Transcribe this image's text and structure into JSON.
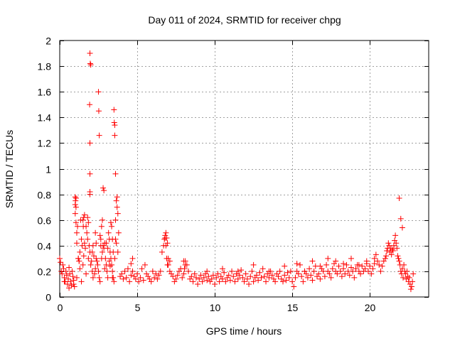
{
  "chart_data": {
    "type": "scatter",
    "title": "Day 011 of 2024, SRMTID for receiver chpg",
    "xlabel": "GPS time / hours",
    "ylabel": "SRMTID / TECUs",
    "xlim": [
      0,
      23.8
    ],
    "ylim": [
      0,
      2
    ],
    "xticks": [
      0,
      5,
      10,
      15,
      20
    ],
    "xtick_labels": [
      "0",
      "5",
      "10",
      "15",
      "20"
    ],
    "yticks": [
      0,
      0.2,
      0.4,
      0.6,
      0.8,
      1,
      1.2,
      1.4,
      1.6,
      1.8,
      2
    ],
    "ytick_labels": [
      "0",
      "0.2",
      "0.4",
      "0.6",
      "0.8",
      "1",
      "1.2",
      "1.4",
      "1.6",
      "1.8",
      "2"
    ],
    "grid": true,
    "marker": "+",
    "color": "#ff0000",
    "series": [
      {
        "name": "SRMTID",
        "x": [
          0.0,
          0.05,
          0.1,
          0.15,
          0.2,
          0.25,
          0.3,
          0.35,
          0.4,
          0.45,
          0.5,
          0.55,
          0.6,
          0.65,
          0.7,
          0.75,
          0.8,
          0.85,
          0.9,
          0.95,
          1.0,
          1.0,
          1.05,
          1.05,
          1.1,
          1.1,
          1.15,
          1.2,
          1.25,
          1.3,
          1.35,
          1.4,
          1.45,
          1.5,
          1.55,
          1.6,
          1.65,
          1.7,
          1.75,
          1.8,
          1.85,
          1.9,
          1.95,
          2.0,
          2.05,
          2.1,
          2.15,
          2.2,
          2.25,
          2.3,
          2.35,
          2.4,
          2.45,
          2.5,
          2.55,
          2.6,
          2.65,
          2.7,
          2.75,
          2.8,
          2.85,
          2.9,
          2.95,
          3.0,
          3.05,
          3.1,
          3.15,
          3.2,
          3.25,
          3.3,
          3.35,
          3.4,
          3.45,
          3.5,
          3.55,
          3.6,
          3.65,
          3.7,
          3.75,
          3.8,
          1.95,
          1.97,
          2.0,
          1.93,
          1.95,
          1.95,
          1.95,
          1.95,
          2.5,
          2.52,
          2.55,
          3.5,
          3.52,
          3.55,
          3.55,
          3.6,
          3.7,
          2.8,
          2.85,
          1.5,
          1.52,
          1.55,
          1.6,
          1.0,
          1.02,
          1.05,
          2.1,
          2.15,
          3.3,
          3.35,
          3.4,
          3.0,
          3.1,
          2.7,
          2.75,
          3.6,
          3.65,
          1.2,
          1.25,
          1.3,
          3.9,
          4.0,
          4.1,
          4.2,
          4.3,
          4.4,
          4.5,
          4.6,
          4.7,
          4.8,
          4.9,
          5.0,
          5.1,
          5.2,
          5.3,
          5.4,
          5.5,
          5.6,
          5.7,
          5.8,
          5.9,
          6.0,
          6.1,
          6.2,
          6.3,
          6.4,
          6.5,
          6.6,
          6.7,
          6.75,
          6.8,
          6.85,
          6.9,
          6.95,
          7.0,
          7.1,
          7.2,
          7.3,
          7.4,
          7.5,
          7.6,
          7.7,
          7.8,
          7.9,
          8.0,
          8.1,
          8.2,
          8.3,
          8.4,
          8.5,
          8.6,
          8.7,
          8.8,
          8.9,
          9.0,
          9.1,
          9.2,
          9.3,
          9.4,
          9.5,
          9.6,
          9.7,
          9.8,
          9.9,
          10.0,
          10.1,
          10.2,
          10.3,
          10.4,
          10.5,
          10.6,
          10.7,
          10.8,
          10.9,
          11.0,
          11.1,
          11.2,
          11.3,
          11.4,
          11.5,
          11.6,
          11.7,
          11.8,
          11.9,
          12.0,
          12.1,
          12.2,
          12.3,
          12.4,
          12.5,
          12.6,
          12.7,
          12.8,
          12.9,
          13.0,
          13.1,
          13.2,
          13.3,
          13.4,
          13.5,
          13.6,
          13.7,
          13.8,
          13.9,
          14.0,
          14.1,
          14.2,
          14.3,
          14.4,
          14.5,
          14.6,
          14.7,
          14.8,
          14.9,
          15.0,
          15.1,
          15.2,
          15.3,
          15.4,
          15.5,
          15.6,
          15.7,
          15.8,
          15.9,
          16.0,
          16.1,
          16.2,
          16.3,
          16.4,
          16.5,
          16.6,
          16.7,
          16.8,
          16.9,
          17.0,
          17.1,
          17.2,
          17.3,
          17.4,
          17.5,
          17.6,
          17.7,
          17.8,
          17.9,
          18.0,
          18.1,
          18.2,
          18.3,
          18.4,
          18.5,
          18.6,
          18.7,
          18.8,
          18.9,
          19.0,
          19.1,
          19.2,
          19.3,
          19.4,
          19.5,
          19.6,
          19.7,
          19.8,
          19.9,
          20.0,
          20.1,
          20.2,
          20.3,
          20.4,
          20.5,
          20.6,
          20.7,
          20.8,
          20.9,
          21.0,
          21.05,
          21.1,
          21.15,
          21.2,
          21.25,
          21.3,
          21.35,
          21.4,
          21.45,
          21.5,
          21.55,
          21.6,
          21.65,
          21.7,
          21.75,
          21.8,
          21.85,
          21.9,
          21.95,
          22.0,
          22.05,
          22.1,
          22.15,
          22.2,
          22.25,
          22.3,
          22.35,
          22.4,
          22.45,
          22.5,
          22.55,
          22.6,
          22.65,
          22.7,
          22.75,
          22.8,
          21.9,
          22.0,
          22.1,
          6.8,
          6.85,
          6.9,
          6.95,
          8.0,
          8.05,
          8.1,
          1.8,
          1.85,
          2.3,
          2.35,
          2.6,
          2.65,
          3.2,
          3.25,
          3.45,
          4.6,
          4.7,
          7.0,
          7.1,
          9.5,
          10.5,
          11.5,
          12.5,
          13.5,
          14.5,
          15.3,
          15.8,
          16.3,
          16.8,
          17.3,
          17.8,
          18.3,
          18.8,
          19.3,
          19.8,
          20.3,
          0.3,
          0.6,
          0.9,
          1.1,
          1.4,
          1.7,
          2.9,
          3.4,
          3.75
        ],
        "y": [
          0.3,
          0.27,
          0.2,
          0.18,
          0.25,
          0.22,
          0.15,
          0.12,
          0.2,
          0.17,
          0.1,
          0.14,
          0.23,
          0.18,
          0.12,
          0.09,
          0.2,
          0.16,
          0.13,
          0.08,
          0.72,
          0.65,
          0.77,
          0.58,
          0.5,
          0.42,
          0.55,
          0.3,
          0.28,
          0.35,
          0.6,
          0.45,
          0.4,
          0.25,
          0.32,
          0.42,
          0.38,
          0.55,
          0.5,
          0.45,
          0.3,
          0.4,
          0.35,
          0.25,
          0.28,
          0.2,
          0.15,
          0.32,
          0.18,
          0.22,
          0.3,
          0.28,
          0.25,
          0.2,
          0.15,
          0.12,
          0.45,
          0.55,
          0.6,
          0.4,
          0.38,
          0.42,
          0.3,
          0.25,
          0.2,
          0.15,
          0.5,
          0.45,
          0.35,
          0.3,
          0.25,
          0.2,
          0.15,
          0.12,
          0.3,
          0.6,
          0.75,
          0.78,
          0.65,
          0.5,
          1.9,
          1.82,
          1.81,
          1.5,
          1.2,
          0.96,
          0.82,
          0.8,
          1.6,
          1.45,
          1.26,
          1.46,
          1.36,
          1.34,
          1.26,
          0.96,
          0.7,
          0.85,
          0.83,
          0.6,
          0.55,
          0.62,
          0.64,
          0.78,
          0.75,
          0.7,
          0.35,
          0.4,
          0.58,
          0.55,
          0.45,
          0.42,
          0.38,
          0.3,
          0.35,
          0.45,
          0.42,
          0.3,
          0.28,
          0.22,
          0.16,
          0.18,
          0.14,
          0.2,
          0.15,
          0.22,
          0.12,
          0.17,
          0.2,
          0.16,
          0.14,
          0.18,
          0.12,
          0.15,
          0.22,
          0.13,
          0.25,
          0.18,
          0.16,
          0.14,
          0.12,
          0.2,
          0.15,
          0.18,
          0.14,
          0.17,
          0.2,
          0.35,
          0.4,
          0.45,
          0.48,
          0.5,
          0.46,
          0.42,
          0.25,
          0.2,
          0.18,
          0.16,
          0.12,
          0.14,
          0.17,
          0.2,
          0.22,
          0.15,
          0.18,
          0.28,
          0.25,
          0.2,
          0.14,
          0.16,
          0.12,
          0.18,
          0.15,
          0.1,
          0.14,
          0.17,
          0.12,
          0.15,
          0.18,
          0.13,
          0.16,
          0.12,
          0.14,
          0.17,
          0.1,
          0.15,
          0.18,
          0.12,
          0.16,
          0.14,
          0.19,
          0.12,
          0.15,
          0.17,
          0.13,
          0.2,
          0.16,
          0.12,
          0.18,
          0.14,
          0.17,
          0.21,
          0.15,
          0.12,
          0.18,
          0.14,
          0.1,
          0.16,
          0.2,
          0.12,
          0.15,
          0.17,
          0.13,
          0.19,
          0.15,
          0.22,
          0.16,
          0.12,
          0.18,
          0.15,
          0.2,
          0.17,
          0.14,
          0.12,
          0.18,
          0.16,
          0.2,
          0.14,
          0.12,
          0.17,
          0.13,
          0.19,
          0.15,
          0.2,
          0.12,
          0.08,
          0.15,
          0.2,
          0.18,
          0.25,
          0.16,
          0.12,
          0.2,
          0.18,
          0.15,
          0.22,
          0.17,
          0.13,
          0.2,
          0.24,
          0.16,
          0.18,
          0.14,
          0.22,
          0.2,
          0.16,
          0.25,
          0.2,
          0.18,
          0.15,
          0.22,
          0.26,
          0.2,
          0.18,
          0.24,
          0.2,
          0.16,
          0.22,
          0.18,
          0.25,
          0.2,
          0.17,
          0.23,
          0.2,
          0.15,
          0.22,
          0.25,
          0.2,
          0.18,
          0.24,
          0.2,
          0.22,
          0.26,
          0.2,
          0.24,
          0.18,
          0.22,
          0.26,
          0.33,
          0.28,
          0.25,
          0.2,
          0.24,
          0.28,
          0.3,
          0.32,
          0.36,
          0.38,
          0.42,
          0.4,
          0.35,
          0.38,
          0.33,
          0.37,
          0.36,
          0.4,
          0.44,
          0.48,
          0.42,
          0.38,
          0.32,
          0.3,
          0.28,
          0.25,
          0.2,
          0.18,
          0.22,
          0.15,
          0.25,
          0.2,
          0.18,
          0.14,
          0.2,
          0.16,
          0.12,
          0.15,
          0.1,
          0.06,
          0.08,
          0.12,
          0.18,
          0.77,
          0.61,
          0.54,
          0.46,
          0.4,
          0.3,
          0.25,
          0.28,
          0.22,
          0.25,
          0.62,
          0.58,
          0.5,
          0.42,
          0.48,
          0.4,
          0.28,
          0.24,
          0.35,
          0.26,
          0.3,
          0.3,
          0.28,
          0.2,
          0.22,
          0.2,
          0.25,
          0.2,
          0.24,
          0.26,
          0.2,
          0.28,
          0.24,
          0.3,
          0.28,
          0.26,
          0.3,
          0.25,
          0.28,
          0.3,
          0.12,
          0.07,
          0.1,
          0.15,
          0.12,
          0.18,
          0.22,
          0.15,
          0.35
        ]
      }
    ]
  }
}
